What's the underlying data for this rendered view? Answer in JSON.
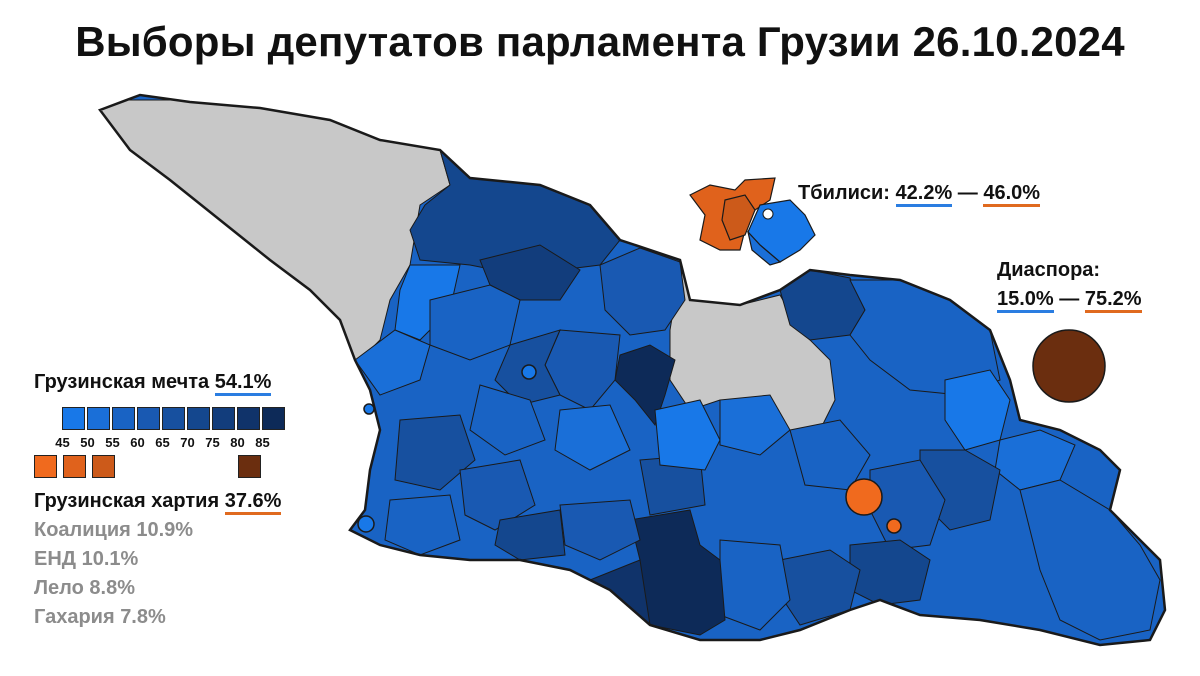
{
  "title": "Выборы депутатов парламента Грузии 26.10.2024",
  "colors": {
    "gd_scale": [
      "#1878e8",
      "#1a6fd8",
      "#1963c4",
      "#1959b2",
      "#17509f",
      "#14478e",
      "#123d7c",
      "#10336a",
      "#0d2a58"
    ],
    "charter_scale": [
      "#f06a1e",
      "#e0621c",
      "#cc5a1a"
    ],
    "charter_dark": "#6b2e0f",
    "opposition_gray": "#c8c8c8",
    "border": "#1a1a1a"
  },
  "tbilisi": {
    "label": "Тбилиси:",
    "gd": "42.2%",
    "sep": "—",
    "charter": "46.0%"
  },
  "diaspora": {
    "label": "Диаспора:",
    "gd": "15.0%",
    "sep": "—",
    "charter": "75.2%"
  },
  "legend": {
    "gd_name": "Грузинская мечта",
    "gd_value": "54.1%",
    "ticks": [
      "45",
      "50",
      "55",
      "60",
      "65",
      "70",
      "75",
      "80",
      "85"
    ],
    "charter_name": "Грузинская хартия",
    "charter_value": "37.6%"
  },
  "others": [
    {
      "name": "Коалиция",
      "value": "10.9%"
    },
    {
      "name": "ЕНД",
      "value": "10.1%"
    },
    {
      "name": "Лело",
      "value": "8.8%"
    },
    {
      "name": "Гахария",
      "value": "7.8%"
    }
  ]
}
